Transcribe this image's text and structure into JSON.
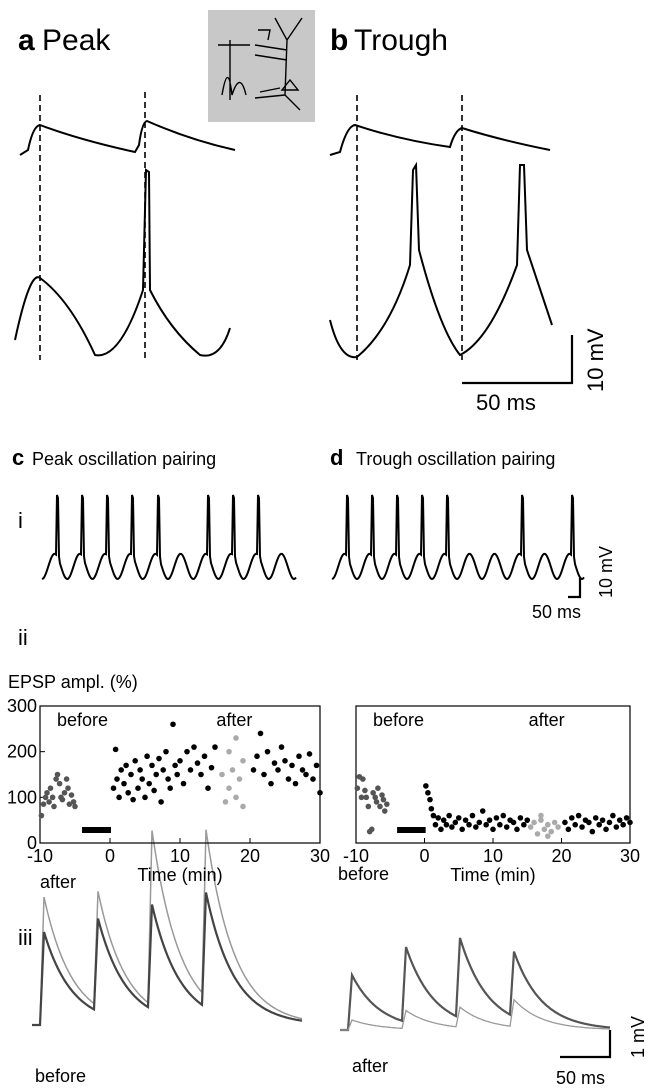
{
  "panels": {
    "a": {
      "letter": "a",
      "title": "Peak"
    },
    "b": {
      "letter": "b",
      "title": "Trough"
    },
    "c": {
      "letter": "c",
      "title": "Peak oscillation pairing"
    },
    "d": {
      "letter": "d",
      "title": "Trough oscillation pairing"
    }
  },
  "labels": {
    "i": "i",
    "ii": "ii",
    "iii": "iii"
  },
  "scale_bars": {
    "ab": {
      "time": "50 ms",
      "voltage": "10 mV"
    },
    "cd": {
      "time": "50 ms",
      "voltage": "10 mV"
    },
    "iii": {
      "time": "50 ms",
      "voltage": "1 mV"
    }
  },
  "trace_labels": {
    "left_after": "after",
    "left_before": "before",
    "right_before": "before",
    "right_after": "after"
  },
  "chart_data": [
    {
      "type": "scatter",
      "ylabel": "EPSP ampl. (%)",
      "xlabel": "Time (min)",
      "annotations": [
        "before",
        "after"
      ],
      "xlim": [
        -10,
        30
      ],
      "ylim": [
        0,
        300
      ],
      "xticks": [
        -10,
        0,
        10,
        20,
        30
      ],
      "yticks": [
        0,
        100,
        200,
        300
      ],
      "series": [
        {
          "color": "#555555",
          "x": [
            -9.8,
            -9.5,
            -9.2,
            -9,
            -8.7,
            -8.5,
            -8.2,
            -8,
            -7.7,
            -7.5,
            -7.2,
            -7,
            -6.8,
            -6.5,
            -6.2,
            -6,
            -5.8,
            -5.5,
            -5.2,
            -5
          ],
          "values": [
            60,
            85,
            100,
            110,
            90,
            120,
            100,
            80,
            140,
            150,
            130,
            100,
            95,
            110,
            140,
            120,
            85,
            105,
            90,
            80
          ]
        },
        {
          "color": "#000000",
          "x": [
            0.5,
            0.8,
            1,
            1.3,
            1.6,
            2,
            2.3,
            2.6,
            3,
            3.3,
            3.6,
            4,
            4.3,
            4.6,
            5,
            5.3,
            5.6,
            6,
            6.3,
            6.6,
            7,
            7.3,
            7.6,
            8,
            8.3,
            8.6,
            9,
            9.3,
            9.6,
            10,
            10.5,
            11,
            11.5,
            12,
            12.5,
            13,
            13.5,
            14,
            14.5,
            15,
            20.5,
            21,
            21.5,
            22,
            22.5,
            23,
            23.5,
            24,
            24.5,
            25,
            25.5,
            26,
            26.5,
            27,
            27.5,
            28,
            28.5,
            29,
            29.5,
            30
          ],
          "values": [
            120,
            205,
            140,
            100,
            160,
            130,
            170,
            110,
            150,
            95,
            180,
            120,
            160,
            140,
            100,
            190,
            130,
            170,
            115,
            150,
            185,
            90,
            160,
            200,
            140,
            120,
            260,
            170,
            150,
            180,
            130,
            200,
            160,
            210,
            175,
            150,
            190,
            120,
            165,
            210,
            160,
            190,
            240,
            150,
            200,
            130,
            175,
            160,
            210,
            180,
            140,
            170,
            130,
            190,
            160,
            150,
            195,
            140,
            170,
            110
          ]
        },
        {
          "color": "#aaaaaa",
          "x": [
            16,
            16.5,
            17,
            17,
            17.5,
            18,
            18,
            18.5,
            19,
            19
          ],
          "values": [
            150,
            90,
            200,
            120,
            160,
            100,
            230,
            140,
            180,
            80
          ]
        }
      ]
    },
    {
      "type": "scatter",
      "xlabel": "Time (min)",
      "annotations": [
        "before",
        "after"
      ],
      "xlim": [
        -10,
        30
      ],
      "ylim": [
        0,
        300
      ],
      "xticks": [
        -10,
        0,
        10,
        20,
        30
      ],
      "series": [
        {
          "color": "#555555",
          "x": [
            -9.8,
            -9.5,
            -9.2,
            -9,
            -8.7,
            -8.5,
            -8.2,
            -8,
            -7.7,
            -7.5,
            -7.2,
            -7,
            -6.8,
            -6.5,
            -6.2,
            -6,
            -5.8,
            -5.5
          ],
          "values": [
            120,
            145,
            100,
            140,
            115,
            100,
            80,
            25,
            30,
            110,
            100,
            90,
            120,
            80,
            105,
            95,
            70,
            85
          ]
        },
        {
          "color": "#000000",
          "x": [
            0.2,
            0.5,
            0.8,
            1,
            1.3,
            1.6,
            2,
            2.4,
            2.8,
            3.2,
            3.6,
            4,
            4.5,
            5,
            5.5,
            6,
            6.5,
            7,
            7.5,
            8,
            8.5,
            9,
            9.5,
            10,
            10.5,
            11,
            11.5,
            12,
            12.5,
            13,
            13.5,
            14,
            14.5,
            15,
            20.5,
            21,
            21.5,
            22,
            22.5,
            23,
            23.5,
            24,
            24.5,
            25,
            25.5,
            26,
            26.5,
            27,
            27.5,
            28,
            28.5,
            29,
            29.5,
            30
          ],
          "values": [
            125,
            110,
            95,
            75,
            60,
            40,
            55,
            30,
            50,
            40,
            60,
            35,
            45,
            55,
            30,
            50,
            40,
            60,
            35,
            45,
            70,
            40,
            50,
            30,
            55,
            40,
            60,
            35,
            50,
            45,
            30,
            55,
            40,
            50,
            45,
            30,
            55,
            40,
            60,
            35,
            50,
            45,
            25,
            55,
            40,
            50,
            30,
            45,
            60,
            35,
            50,
            40,
            55,
            45
          ]
        },
        {
          "color": "#aaaaaa",
          "x": [
            15.5,
            16,
            16.5,
            17,
            17.5,
            18,
            18.5,
            19,
            19.5,
            17,
            18
          ],
          "values": [
            35,
            45,
            20,
            50,
            30,
            40,
            25,
            45,
            35,
            60,
            15
          ]
        }
      ]
    }
  ]
}
